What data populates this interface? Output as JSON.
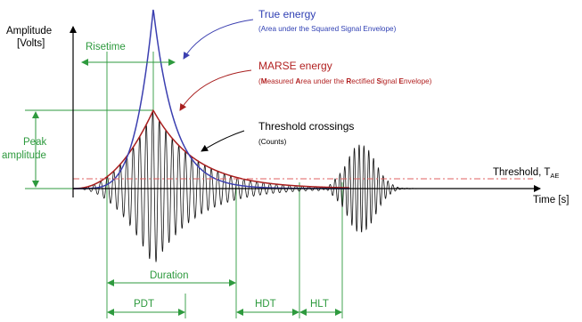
{
  "colors": {
    "waveform": "#111111",
    "true_energy": "#3b3fb0",
    "marse_energy": "#a81e1e",
    "threshold": "#e06060",
    "measure": "#2e9a3e",
    "axis": "#000000"
  },
  "axis": {
    "y_label_line1": "Amplitude",
    "y_label_line2": "[Volts]",
    "x_label": "Time [s]"
  },
  "labels": {
    "risetime": "Risetime",
    "peak_line1": "Peak",
    "peak_line2": "amplitude",
    "duration": "Duration",
    "pdt": "PDT",
    "hdt": "HDT",
    "hlt": "HLT",
    "threshold_prefix": "Threshold, T",
    "threshold_subscript": "AE"
  },
  "annotations": {
    "true_energy": {
      "title": "True energy",
      "subtitle": "(Area under the Squared Signal Envelope)"
    },
    "marse_energy": {
      "title": "MARSE energy",
      "subtitle_parts": [
        {
          "text": "(",
          "bold": false
        },
        {
          "text": "M",
          "bold": true
        },
        {
          "text": "easured ",
          "bold": false
        },
        {
          "text": "A",
          "bold": true
        },
        {
          "text": "rea under the ",
          "bold": false
        },
        {
          "text": "R",
          "bold": true
        },
        {
          "text": "ectified ",
          "bold": false
        },
        {
          "text": "S",
          "bold": true
        },
        {
          "text": "ignal ",
          "bold": false
        },
        {
          "text": "E",
          "bold": true
        },
        {
          "text": "nvelope)",
          "bold": false
        }
      ]
    },
    "threshold_crossings": {
      "title": "Threshold crossings",
      "subtitle": "(Counts)"
    }
  }
}
